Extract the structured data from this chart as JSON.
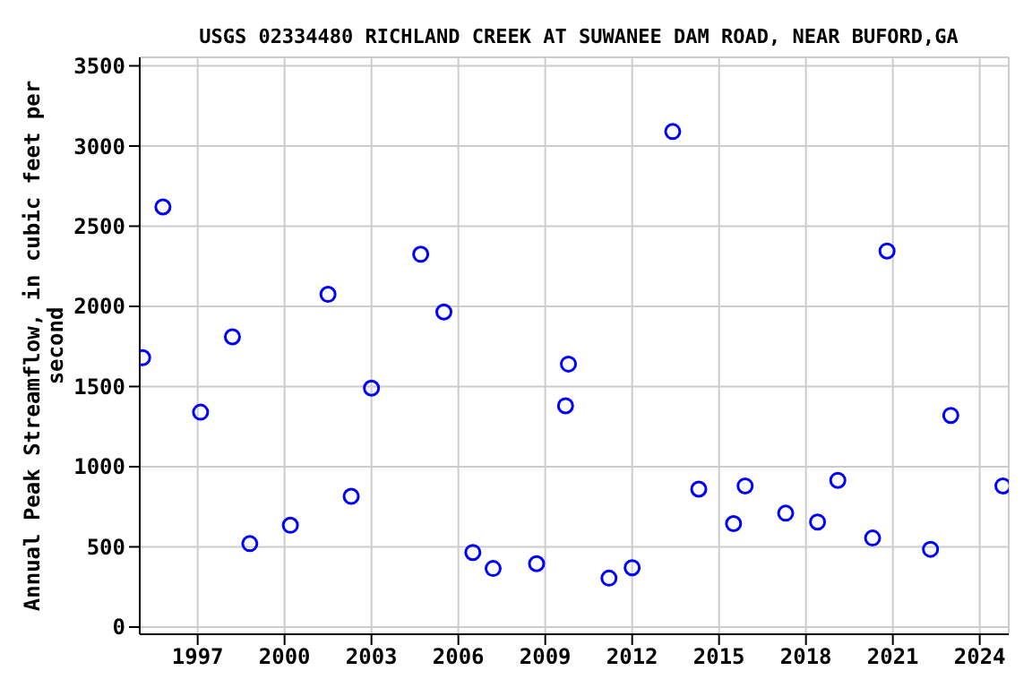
{
  "chart_data": {
    "type": "scatter",
    "title": "USGS 02334480 RICHLAND CREEK AT SUWANEE DAM ROAD, NEAR BUFORD,GA",
    "ylabel": "Annual Peak Streamflow, in cubic feet per second",
    "x": [
      1995.1,
      1995.8,
      1997.1,
      1998.2,
      1998.8,
      2000.2,
      2001.5,
      2002.3,
      2003.0,
      2004.7,
      2005.5,
      2006.5,
      2007.2,
      2008.7,
      2009.7,
      2009.8,
      2011.2,
      2012.0,
      2013.4,
      2014.3,
      2015.5,
      2015.9,
      2017.3,
      2018.4,
      2019.1,
      2020.3,
      2020.8,
      2022.3,
      2023.0,
      2024.8
    ],
    "series": [
      {
        "color": "#0000ff",
        "values": [
          1680,
          2620,
          1340,
          1810,
          520,
          635,
          2075,
          815,
          1490,
          2325,
          1965,
          465,
          365,
          395,
          1380,
          1640,
          305,
          370,
          3090,
          860,
          645,
          880,
          710,
          655,
          915,
          555,
          2345,
          485,
          1320,
          880
        ]
      }
    ],
    "xlim": [
      1995,
      2025
    ],
    "xticks": [
      1997,
      2000,
      2003,
      2006,
      2009,
      2012,
      2015,
      2018,
      2021,
      2024
    ],
    "ylim": [
      -45,
      3553
    ],
    "yticks": [
      0,
      500,
      1000,
      1500,
      2000,
      2500,
      3000,
      3500
    ],
    "grid": true,
    "marker": "circle",
    "legend": false
  }
}
